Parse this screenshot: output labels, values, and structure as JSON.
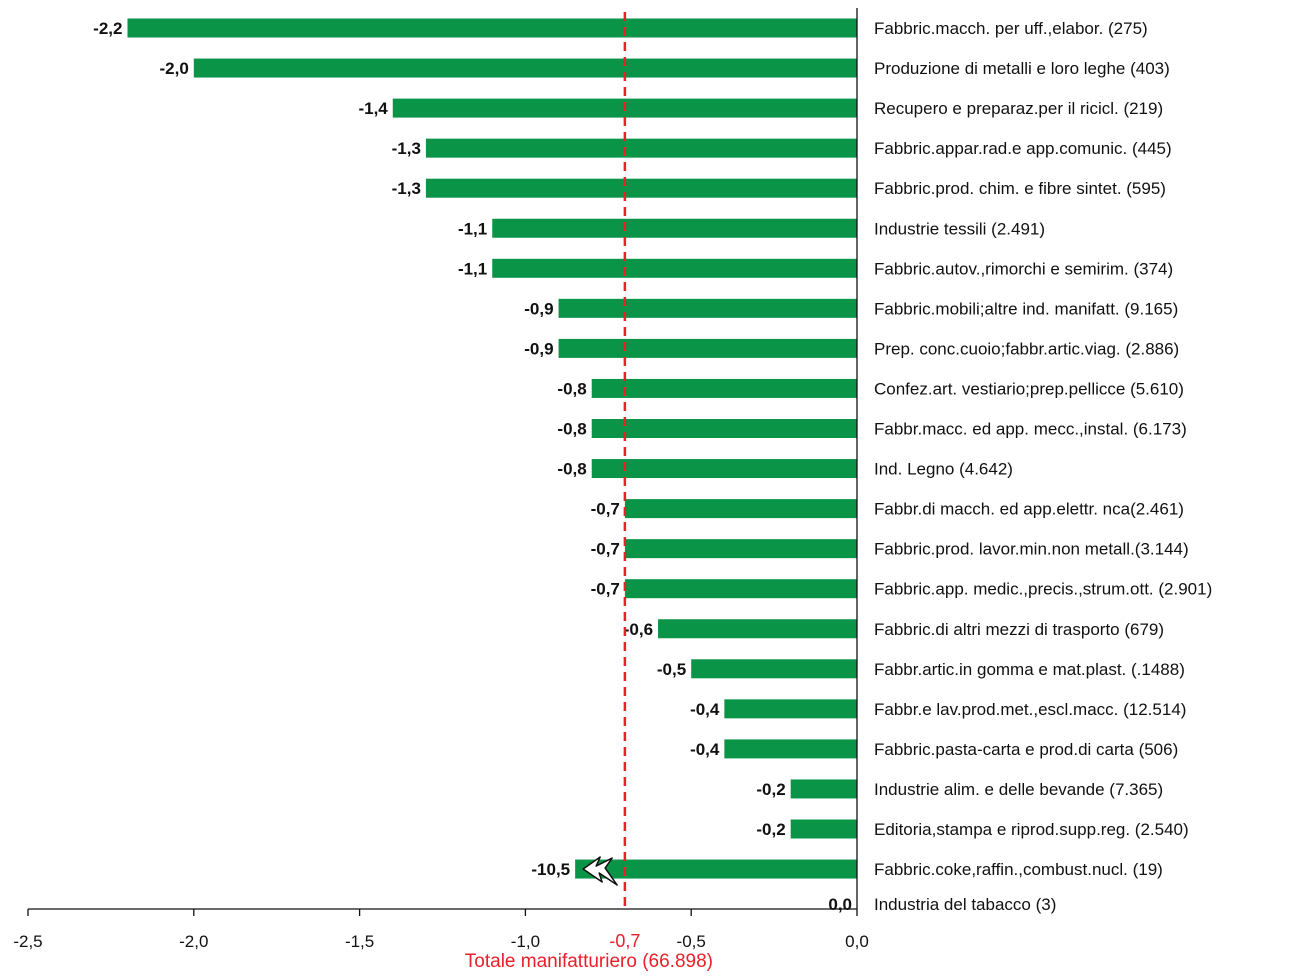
{
  "chart_data": {
    "type": "bar",
    "orientation": "horizontal",
    "categories": [
      "Fabbric.macch. per uff.,elabor. (275)",
      "Produzione di metalli e loro leghe (403)",
      "Recupero e preparaz.per il ricicl. (219)",
      "Fabbric.appar.rad.e app.comunic. (445)",
      "Fabbric.prod. chim. e fibre sintet. (595)",
      "Industrie tessili (2.491)",
      "Fabbric.autov.,rimorchi e semirim. (374)",
      "Fabbric.mobili;altre ind. manifatt. (9.165)",
      "Prep. conc.cuoio;fabbr.artic.viag. (2.886)",
      "Confez.art. vestiario;prep.pellicce (5.610)",
      "Fabbr.macc. ed app. mecc.,instal. (6.173)",
      "Ind. Legno (4.642)",
      "Fabbr.di macch. ed app.elettr. nca(2.461)",
      "Fabbric.prod. lavor.min.non metall.(3.144)",
      "Fabbric.app. medic.,precis.,strum.ott. (2.901)",
      "Fabbric.di altri mezzi di trasporto (679)",
      "Fabbr.artic.in gomma e mat.plast. (.1488)",
      "Fabbr.e lav.prod.met.,escl.macc. (12.514)",
      "Fabbric.pasta-carta e prod.di carta (506)",
      "Industrie alim. e delle bevande (7.365)",
      "Editoria,stampa e riprod.supp.reg. (2.540)",
      "Fabbric.coke,raffin.,combust.nucl. (19)",
      "Industria del tabacco (3)"
    ],
    "values": [
      -2.2,
      -2.0,
      -1.4,
      -1.3,
      -1.3,
      -1.1,
      -1.1,
      -0.9,
      -0.9,
      -0.8,
      -0.8,
      -0.8,
      -0.7,
      -0.7,
      -0.7,
      -0.6,
      -0.5,
      -0.4,
      -0.4,
      -0.2,
      -0.2,
      -10.5,
      0.0
    ],
    "value_labels": [
      "-2,2",
      "-2,0",
      "-1,4",
      "-1,3",
      "-1,3",
      "-1,1",
      "-1,1",
      "-0,9",
      "-0,9",
      "-0,8",
      "-0,8",
      "-0,8",
      "-0,7",
      "-0,7",
      "-0,7",
      "-0,6",
      "-0,5",
      "-0,4",
      "-0,4",
      "-0,2",
      "-0,2",
      "-10,5",
      "0,0"
    ],
    "xlim": [
      -2.5,
      0.0
    ],
    "xticks": [
      -2.5,
      -2.0,
      -1.5,
      -1.0,
      -0.5,
      0.0
    ],
    "xtick_labels": [
      "-2,5",
      "-2,0",
      "-1,5",
      "-1,0",
      "-0,5",
      "0,0"
    ],
    "axis_break_category": "Fabbric.coke,raffin.,combust.nucl. (19)",
    "reference_line": {
      "value": -0.7,
      "label": "-0,7",
      "title": "Totale manifatturiero (66.898)",
      "style": "dashed"
    },
    "bar_color": "#0a9447",
    "reference_color": "#e8202a",
    "grid": false,
    "legend": "none",
    "title": "",
    "xlabel": "",
    "ylabel": ""
  }
}
